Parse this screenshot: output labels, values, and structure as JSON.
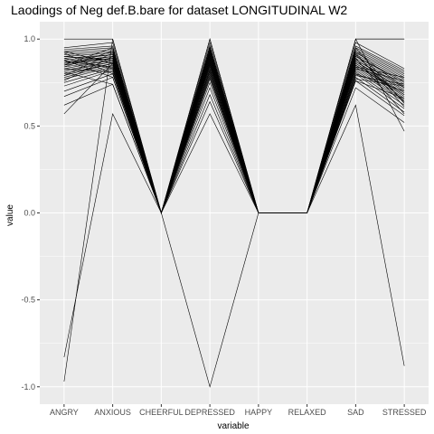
{
  "chart_data": {
    "type": "line",
    "title": "Laodings of Neg def.B.bare for dataset LONGITUDINAL W2",
    "xlabel": "variable",
    "ylabel": "value",
    "categories": [
      "ANGRY",
      "ANXIOUS",
      "CHEERFUL",
      "DEPRESSED",
      "HAPPY",
      "RELAXED",
      "SAD",
      "STRESSED"
    ],
    "ylim": [
      -1.1,
      1.1
    ],
    "yticks": [
      -1.0,
      -0.5,
      0.0,
      0.5,
      1.0
    ],
    "ytick_labels": [
      "-1.0",
      "-0.5",
      "0.0",
      "0.5",
      "1.0"
    ],
    "grid": true,
    "panel_background": "#ebebeb",
    "grid_color": "#ffffff",
    "line_color": "#000000",
    "series_values": [
      [
        1.0,
        1.0,
        0.0,
        1.0,
        0.0,
        0.0,
        1.0,
        1.0
      ],
      [
        -0.97,
        1.0,
        0.0,
        1.0,
        0.0,
        0.0,
        1.0,
        1.0
      ],
      [
        -0.83,
        0.57,
        0.0,
        -1.0,
        0.0,
        0.0,
        0.62,
        -0.88
      ],
      [
        0.57,
        0.86,
        0.0,
        0.57,
        0.0,
        0.0,
        1.0,
        0.47
      ],
      [
        0.62,
        0.74,
        0.0,
        0.64,
        0.0,
        0.0,
        0.72,
        0.52
      ],
      [
        0.67,
        0.78,
        0.0,
        0.68,
        0.0,
        0.0,
        0.76,
        0.56
      ],
      [
        0.7,
        0.8,
        0.0,
        0.72,
        0.0,
        0.0,
        0.78,
        0.58
      ],
      [
        0.73,
        0.82,
        0.0,
        0.75,
        0.0,
        0.0,
        0.8,
        0.6
      ],
      [
        0.75,
        0.83,
        0.0,
        0.78,
        0.0,
        0.0,
        0.81,
        0.62
      ],
      [
        0.77,
        0.84,
        0.0,
        0.8,
        0.0,
        0.0,
        0.82,
        0.64
      ],
      [
        0.78,
        0.85,
        0.0,
        0.81,
        0.0,
        0.0,
        0.83,
        0.65
      ],
      [
        0.79,
        0.86,
        0.0,
        0.82,
        0.0,
        0.0,
        0.84,
        0.66
      ],
      [
        0.8,
        0.86,
        0.0,
        0.83,
        0.0,
        0.0,
        0.85,
        0.67
      ],
      [
        0.81,
        0.87,
        0.0,
        0.84,
        0.0,
        0.0,
        0.85,
        0.68
      ],
      [
        0.82,
        0.87,
        0.0,
        0.85,
        0.0,
        0.0,
        0.86,
        0.69
      ],
      [
        0.83,
        0.88,
        0.0,
        0.86,
        0.0,
        0.0,
        0.87,
        0.7
      ],
      [
        0.84,
        0.88,
        0.0,
        0.87,
        0.0,
        0.0,
        0.87,
        0.71
      ],
      [
        0.85,
        0.89,
        0.0,
        0.87,
        0.0,
        0.0,
        0.88,
        0.72
      ],
      [
        0.86,
        0.89,
        0.0,
        0.88,
        0.0,
        0.0,
        0.88,
        0.73
      ],
      [
        0.86,
        0.9,
        0.0,
        0.89,
        0.0,
        0.0,
        0.89,
        0.74
      ],
      [
        0.87,
        0.9,
        0.0,
        0.89,
        0.0,
        0.0,
        0.9,
        0.75
      ],
      [
        0.88,
        0.91,
        0.0,
        0.9,
        0.0,
        0.0,
        0.9,
        0.76
      ],
      [
        0.89,
        0.91,
        0.0,
        0.91,
        0.0,
        0.0,
        0.91,
        0.77
      ],
      [
        0.9,
        0.92,
        0.0,
        0.92,
        0.0,
        0.0,
        0.92,
        0.78
      ],
      [
        0.91,
        0.93,
        0.0,
        0.93,
        0.0,
        0.0,
        0.93,
        0.79
      ],
      [
        0.92,
        0.94,
        0.0,
        0.94,
        0.0,
        0.0,
        0.94,
        0.8
      ],
      [
        0.93,
        0.95,
        0.0,
        0.95,
        0.0,
        0.0,
        0.95,
        0.81
      ],
      [
        0.94,
        0.96,
        0.0,
        0.96,
        0.0,
        0.0,
        0.96,
        0.82
      ],
      [
        0.95,
        0.98,
        0.0,
        0.98,
        0.0,
        0.0,
        0.98,
        0.83
      ],
      [
        0.81,
        0.74,
        0.0,
        0.92,
        0.0,
        0.0,
        0.77,
        0.73
      ],
      [
        0.88,
        0.78,
        0.0,
        0.85,
        0.0,
        0.0,
        0.92,
        0.61
      ],
      [
        0.76,
        0.9,
        0.0,
        0.94,
        0.0,
        0.0,
        0.8,
        0.7
      ],
      [
        0.92,
        0.8,
        0.0,
        0.79,
        0.0,
        0.0,
        0.83,
        0.76
      ],
      [
        0.84,
        0.93,
        0.0,
        0.82,
        0.0,
        0.0,
        0.95,
        0.63
      ],
      [
        0.79,
        0.92,
        0.0,
        0.9,
        0.0,
        0.0,
        0.86,
        0.68
      ],
      [
        0.87,
        0.84,
        0.0,
        0.96,
        0.0,
        0.0,
        0.79,
        0.74
      ],
      [
        0.9,
        0.88,
        0.0,
        0.77,
        0.0,
        0.0,
        0.89,
        0.57
      ],
      [
        0.83,
        0.81,
        0.0,
        0.88,
        0.0,
        0.0,
        0.93,
        0.72
      ],
      [
        0.93,
        0.86,
        0.0,
        0.86,
        0.0,
        0.0,
        0.76,
        0.66
      ],
      [
        0.85,
        0.95,
        0.0,
        0.91,
        0.0,
        0.0,
        0.84,
        0.78
      ],
      [
        0.89,
        0.83,
        0.0,
        0.93,
        0.0,
        0.0,
        0.91,
        0.64
      ]
    ]
  }
}
